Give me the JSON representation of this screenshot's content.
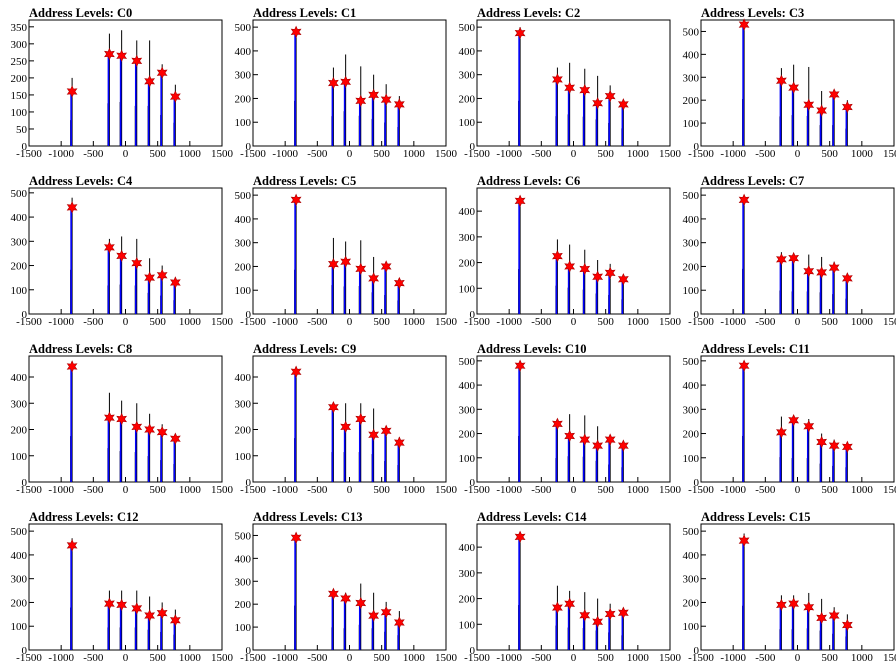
{
  "style": {
    "axis_color": "#000000",
    "hist_color": "#000000",
    "fit_color": "#0000ff",
    "marker_color": "#ff0000"
  },
  "x_axis": {
    "xlim": [
      -1500,
      1500
    ],
    "ticks": [
      -1500,
      -1000,
      -500,
      0,
      500,
      1000,
      1500
    ]
  },
  "chart_data": [
    {
      "type": "histogram",
      "title": "Address Levels: C0",
      "ylim": [
        0,
        370
      ],
      "yticks": [
        0,
        50,
        100,
        150,
        200,
        250,
        300,
        350
      ],
      "spikes": [
        [
          -830,
          200
        ],
        [
          -250,
          330
        ],
        [
          -60,
          340
        ],
        [
          175,
          310
        ],
        [
          375,
          310
        ],
        [
          570,
          240
        ],
        [
          775,
          180
        ]
      ],
      "peaks": [
        [
          -830,
          160
        ],
        [
          -250,
          270
        ],
        [
          -60,
          265
        ],
        [
          175,
          250
        ],
        [
          375,
          190
        ],
        [
          570,
          215
        ],
        [
          775,
          145
        ]
      ]
    },
    {
      "type": "histogram",
      "title": "Address Levels: C1",
      "ylim": [
        0,
        530
      ],
      "yticks": [
        0,
        100,
        200,
        300,
        400,
        500
      ],
      "spikes": [
        [
          -830,
          500
        ],
        [
          -250,
          330
        ],
        [
          -60,
          385
        ],
        [
          175,
          335
        ],
        [
          375,
          300
        ],
        [
          570,
          260
        ],
        [
          775,
          210
        ]
      ],
      "peaks": [
        [
          -830,
          480
        ],
        [
          -250,
          265
        ],
        [
          -60,
          270
        ],
        [
          175,
          190
        ],
        [
          375,
          215
        ],
        [
          570,
          195
        ],
        [
          775,
          175
        ]
      ]
    },
    {
      "type": "histogram",
      "title": "Address Levels: C2",
      "ylim": [
        0,
        530
      ],
      "yticks": [
        0,
        100,
        200,
        300,
        400,
        500
      ],
      "spikes": [
        [
          -830,
          500
        ],
        [
          -250,
          330
        ],
        [
          -60,
          350
        ],
        [
          175,
          325
        ],
        [
          375,
          295
        ],
        [
          570,
          255
        ],
        [
          775,
          195
        ]
      ],
      "peaks": [
        [
          -830,
          475
        ],
        [
          -250,
          280
        ],
        [
          -60,
          245
        ],
        [
          175,
          235
        ],
        [
          375,
          180
        ],
        [
          570,
          210
        ],
        [
          775,
          175
        ]
      ]
    },
    {
      "type": "histogram",
      "title": "Address Levels: C3",
      "ylim": [
        0,
        550
      ],
      "yticks": [
        0,
        100,
        200,
        300,
        400,
        500
      ],
      "spikes": [
        [
          -830,
          540
        ],
        [
          -250,
          340
        ],
        [
          -60,
          355
        ],
        [
          175,
          345
        ],
        [
          375,
          240
        ],
        [
          570,
          240
        ],
        [
          775,
          200
        ]
      ],
      "peaks": [
        [
          -830,
          530
        ],
        [
          -250,
          285
        ],
        [
          -60,
          255
        ],
        [
          175,
          180
        ],
        [
          375,
          155
        ],
        [
          570,
          225
        ],
        [
          775,
          170
        ]
      ]
    },
    {
      "type": "histogram",
      "title": "Address Levels: C4",
      "ylim": [
        0,
        520
      ],
      "yticks": [
        0,
        100,
        200,
        300,
        400,
        500
      ],
      "spikes": [
        [
          -830,
          480
        ],
        [
          -250,
          310
        ],
        [
          -60,
          320
        ],
        [
          175,
          310
        ],
        [
          375,
          230
        ],
        [
          570,
          200
        ],
        [
          775,
          150
        ]
      ],
      "peaks": [
        [
          -830,
          440
        ],
        [
          -250,
          275
        ],
        [
          -60,
          240
        ],
        [
          175,
          210
        ],
        [
          375,
          150
        ],
        [
          570,
          160
        ],
        [
          775,
          130
        ]
      ]
    },
    {
      "type": "histogram",
      "title": "Address Levels: C5",
      "ylim": [
        0,
        530
      ],
      "yticks": [
        0,
        100,
        200,
        300,
        400,
        500
      ],
      "spikes": [
        [
          -830,
          490
        ],
        [
          -250,
          320
        ],
        [
          -60,
          305
        ],
        [
          175,
          310
        ],
        [
          375,
          240
        ],
        [
          570,
          210
        ],
        [
          775,
          150
        ]
      ],
      "peaks": [
        [
          -830,
          480
        ],
        [
          -250,
          210
        ],
        [
          -60,
          220
        ],
        [
          175,
          190
        ],
        [
          375,
          150
        ],
        [
          570,
          200
        ],
        [
          775,
          130
        ]
      ]
    },
    {
      "type": "histogram",
      "title": "Address Levels: C6",
      "ylim": [
        0,
        490
      ],
      "yticks": [
        0,
        100,
        200,
        300,
        400
      ],
      "spikes": [
        [
          -830,
          460
        ],
        [
          -250,
          290
        ],
        [
          -60,
          270
        ],
        [
          175,
          250
        ],
        [
          375,
          210
        ],
        [
          570,
          195
        ],
        [
          775,
          150
        ]
      ],
      "peaks": [
        [
          -830,
          440
        ],
        [
          -250,
          225
        ],
        [
          -60,
          185
        ],
        [
          175,
          175
        ],
        [
          375,
          145
        ],
        [
          570,
          160
        ],
        [
          775,
          135
        ]
      ]
    },
    {
      "type": "histogram",
      "title": "Address Levels: C7",
      "ylim": [
        0,
        530
      ],
      "yticks": [
        0,
        100,
        200,
        300,
        400,
        500
      ],
      "spikes": [
        [
          -830,
          500
        ],
        [
          -250,
          260
        ],
        [
          -60,
          250
        ],
        [
          175,
          250
        ],
        [
          375,
          240
        ],
        [
          570,
          220
        ],
        [
          775,
          170
        ]
      ],
      "peaks": [
        [
          -830,
          480
        ],
        [
          -250,
          230
        ],
        [
          -60,
          235
        ],
        [
          175,
          180
        ],
        [
          375,
          175
        ],
        [
          570,
          195
        ],
        [
          775,
          150
        ]
      ]
    },
    {
      "type": "histogram",
      "title": "Address Levels: C8",
      "ylim": [
        0,
        480
      ],
      "yticks": [
        0,
        100,
        200,
        300,
        400
      ],
      "spikes": [
        [
          -830,
          460
        ],
        [
          -250,
          340
        ],
        [
          -60,
          310
        ],
        [
          175,
          300
        ],
        [
          375,
          260
        ],
        [
          570,
          220
        ],
        [
          775,
          180
        ]
      ],
      "peaks": [
        [
          -830,
          440
        ],
        [
          -250,
          245
        ],
        [
          -60,
          240
        ],
        [
          175,
          210
        ],
        [
          375,
          200
        ],
        [
          570,
          190
        ],
        [
          775,
          165
        ]
      ]
    },
    {
      "type": "histogram",
      "title": "Address Levels: C9",
      "ylim": [
        0,
        480
      ],
      "yticks": [
        0,
        100,
        200,
        300,
        400
      ],
      "spikes": [
        [
          -830,
          440
        ],
        [
          -250,
          300
        ],
        [
          -60,
          300
        ],
        [
          175,
          300
        ],
        [
          375,
          280
        ],
        [
          570,
          210
        ],
        [
          775,
          170
        ]
      ],
      "peaks": [
        [
          -830,
          420
        ],
        [
          -250,
          285
        ],
        [
          -60,
          210
        ],
        [
          175,
          240
        ],
        [
          375,
          180
        ],
        [
          570,
          195
        ],
        [
          775,
          150
        ]
      ]
    },
    {
      "type": "histogram",
      "title": "Address Levels: C10",
      "ylim": [
        0,
        520
      ],
      "yticks": [
        0,
        100,
        200,
        300,
        400,
        500
      ],
      "spikes": [
        [
          -830,
          500
        ],
        [
          -250,
          260
        ],
        [
          -60,
          280
        ],
        [
          175,
          275
        ],
        [
          375,
          230
        ],
        [
          570,
          190
        ],
        [
          775,
          160
        ]
      ],
      "peaks": [
        [
          -830,
          480
        ],
        [
          -250,
          240
        ],
        [
          -60,
          190
        ],
        [
          175,
          175
        ],
        [
          375,
          150
        ],
        [
          570,
          175
        ],
        [
          775,
          150
        ]
      ]
    },
    {
      "type": "histogram",
      "title": "Address Levels: C11",
      "ylim": [
        0,
        520
      ],
      "yticks": [
        0,
        100,
        200,
        300,
        400,
        500
      ],
      "spikes": [
        [
          -830,
          500
        ],
        [
          -250,
          270
        ],
        [
          -60,
          260
        ],
        [
          175,
          260
        ],
        [
          375,
          200
        ],
        [
          570,
          175
        ],
        [
          775,
          160
        ]
      ],
      "peaks": [
        [
          -830,
          480
        ],
        [
          -250,
          205
        ],
        [
          -60,
          255
        ],
        [
          175,
          230
        ],
        [
          375,
          165
        ],
        [
          570,
          150
        ],
        [
          775,
          145
        ]
      ]
    },
    {
      "type": "histogram",
      "title": "Address Levels: C12",
      "ylim": [
        0,
        530
      ],
      "yticks": [
        0,
        100,
        200,
        300,
        400,
        500
      ],
      "spikes": [
        [
          -830,
          470
        ],
        [
          -250,
          250
        ],
        [
          -60,
          250
        ],
        [
          175,
          250
        ],
        [
          375,
          225
        ],
        [
          570,
          200
        ],
        [
          775,
          170
        ]
      ],
      "peaks": [
        [
          -830,
          440
        ],
        [
          -250,
          195
        ],
        [
          -60,
          190
        ],
        [
          175,
          175
        ],
        [
          375,
          145
        ],
        [
          570,
          155
        ],
        [
          775,
          125
        ]
      ]
    },
    {
      "type": "histogram",
      "title": "Address Levels: C13",
      "ylim": [
        0,
        550
      ],
      "yticks": [
        0,
        100,
        200,
        300,
        400,
        500
      ],
      "spikes": [
        [
          -830,
          510
        ],
        [
          -250,
          260
        ],
        [
          -60,
          250
        ],
        [
          175,
          290
        ],
        [
          375,
          250
        ],
        [
          570,
          210
        ],
        [
          775,
          170
        ]
      ],
      "peaks": [
        [
          -830,
          490
        ],
        [
          -250,
          245
        ],
        [
          -60,
          225
        ],
        [
          175,
          205
        ],
        [
          375,
          150
        ],
        [
          570,
          165
        ],
        [
          775,
          120
        ]
      ]
    },
    {
      "type": "histogram",
      "title": "Address Levels: C14",
      "ylim": [
        0,
        490
      ],
      "yticks": [
        0,
        100,
        200,
        300,
        400
      ],
      "spikes": [
        [
          -830,
          460
        ],
        [
          -250,
          250
        ],
        [
          -60,
          230
        ],
        [
          175,
          225
        ],
        [
          375,
          200
        ],
        [
          570,
          180
        ],
        [
          775,
          150
        ]
      ],
      "peaks": [
        [
          -830,
          440
        ],
        [
          -250,
          165
        ],
        [
          -60,
          180
        ],
        [
          175,
          135
        ],
        [
          375,
          110
        ],
        [
          570,
          140
        ],
        [
          775,
          145
        ]
      ]
    },
    {
      "type": "histogram",
      "title": "Address Levels: C15",
      "ylim": [
        0,
        530
      ],
      "yticks": [
        0,
        100,
        200,
        300,
        400,
        500
      ],
      "spikes": [
        [
          -830,
          490
        ],
        [
          -250,
          230
        ],
        [
          -60,
          230
        ],
        [
          175,
          240
        ],
        [
          375,
          215
        ],
        [
          570,
          180
        ],
        [
          775,
          150
        ]
      ],
      "peaks": [
        [
          -830,
          460
        ],
        [
          -250,
          190
        ],
        [
          -60,
          195
        ],
        [
          175,
          180
        ],
        [
          375,
          135
        ],
        [
          570,
          145
        ],
        [
          775,
          105
        ]
      ]
    }
  ]
}
